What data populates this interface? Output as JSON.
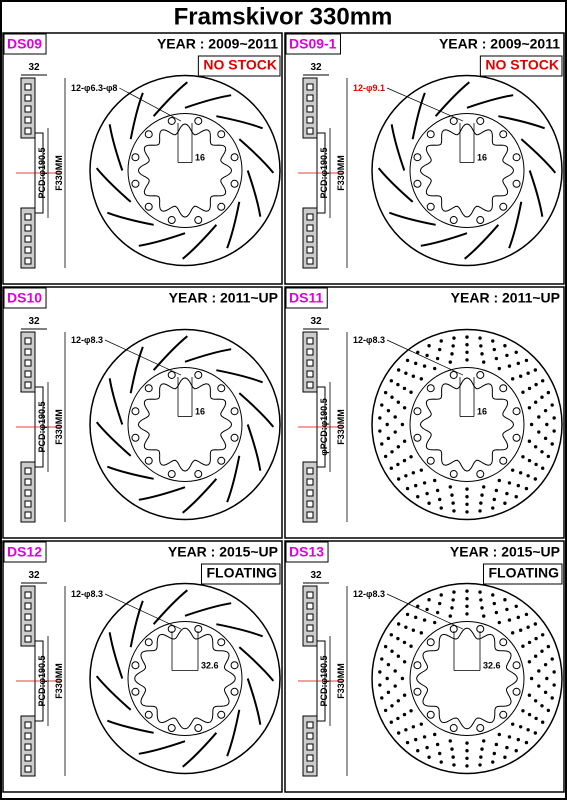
{
  "header": {
    "title": "Framskivor 330mm"
  },
  "panels": [
    {
      "code": "DS09",
      "year": "YEAR : 2009~2011",
      "status": "NO STOCK",
      "thickness": "32",
      "holes": "12-φ6.3-φ8",
      "width": "16",
      "pcd": "PCD:φ190.5",
      "diameter": "F330MM"
    },
    {
      "code": "DS09-1",
      "year": "YEAR : 2009~2011",
      "status": "NO STOCK",
      "thickness": "32",
      "holes": "12-φ9.1",
      "width": "16",
      "pcd": "PCD:φ190.5",
      "diameter": "F330MM"
    },
    {
      "code": "DS10",
      "year": "YEAR : 2011~UP",
      "thickness": "32",
      "holes": "12-φ8.3",
      "width": "16",
      "pcd": "PCD:φ190.5",
      "diameter": "F330MM"
    },
    {
      "code": "DS11",
      "year": "YEAR : 2011~UP",
      "thickness": "32",
      "holes": "12-φ8.3",
      "width": "16",
      "pcd": "φPCD:φ190.5",
      "diameter": "F330MM"
    },
    {
      "code": "DS12",
      "year": "YEAR : 2015~UP",
      "status": "FLOATING",
      "thickness": "32",
      "holes": "12-φ8.3",
      "width": "32.6",
      "pcd": "PCD:φ190.5",
      "diameter": "F330MM"
    },
    {
      "code": "DS13",
      "year": "YEAR : 2015~UP",
      "status": "FLOATING",
      "thickness": "32",
      "holes": "12-φ8.3",
      "width": "32.6",
      "pcd": "PCD:φ190.5",
      "diameter": "F330MM"
    }
  ]
}
